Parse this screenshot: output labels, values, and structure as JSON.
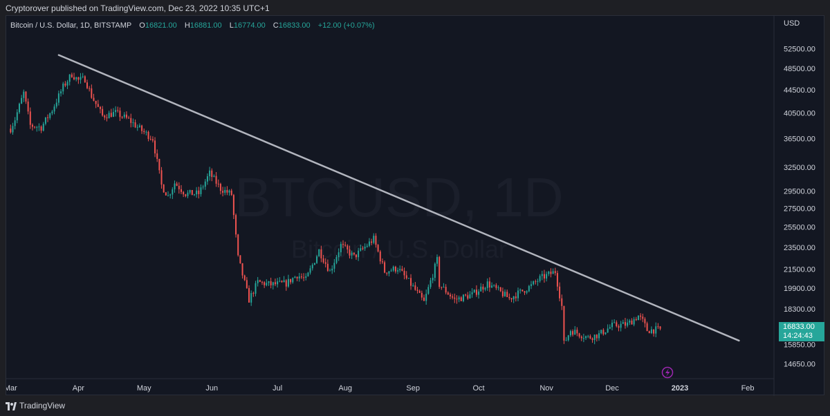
{
  "header": {
    "published_text": "Cryptorover published on TradingView.com, Dec 23, 2022 10:35 UTC+1"
  },
  "symbol": {
    "name": "Bitcoin / U.S. Dollar, 1D, BITSTAMP",
    "open_label": "O",
    "open_value": "16821.00",
    "high_label": "H",
    "high_value": "16881.00",
    "low_label": "L",
    "low_value": "16774.00",
    "close_label": "C",
    "close_value": "16833.00",
    "change": "+12.00 (+0.07%)"
  },
  "watermark": {
    "title": "BTCUSD, 1D",
    "subtitle": "Bitcoin / U.S. Dollar"
  },
  "price_axis": {
    "currency": "USD",
    "current_price": "16833.00",
    "countdown": "14:24:43"
  },
  "footer": {
    "brand": "TradingView"
  },
  "colors": {
    "up": "#26a69a",
    "down": "#ef5350",
    "trendline": "#b2b5be",
    "background": "#131722",
    "text": "#d1d4dc"
  },
  "icons": {
    "flash": "lightning-icon",
    "logo": "tradingview-logo-icon"
  },
  "chart_data": {
    "type": "candlestick",
    "x_tick_labels": [
      "Mar",
      "Apr",
      "May",
      "Jun",
      "Jul",
      "Aug",
      "Sep",
      "Oct",
      "Nov",
      "Dec",
      "2023",
      "Feb"
    ],
    "x_tick_dates": [
      "2022-03-01",
      "2022-04-01",
      "2022-05-01",
      "2022-06-01",
      "2022-07-01",
      "2022-08-01",
      "2022-09-01",
      "2022-10-01",
      "2022-11-01",
      "2022-12-01",
      "2023-01-01",
      "2023-02-01"
    ],
    "y_tick_values": [
      52500,
      48500,
      44500,
      40500,
      36500,
      32500,
      29500,
      27500,
      25500,
      23500,
      21500,
      19900,
      18300,
      15850,
      14650
    ],
    "y_tick_labels": [
      "52500.00",
      "48500.00",
      "44500.00",
      "40500.00",
      "36500.00",
      "32500.00",
      "29500.00",
      "27500.00",
      "25500.00",
      "23500.00",
      "21500.00",
      "19900.00",
      "18300.00",
      "15850.00",
      "14650.00"
    ],
    "y_scale": "log",
    "y_range": [
      13800,
      60000
    ],
    "x_range": [
      "2022-02-27",
      "2023-02-13"
    ],
    "grid": false,
    "trendline": [
      {
        "date": "2022-03-23",
        "price": 51200
      },
      {
        "date": "2023-01-28",
        "price": 16100
      }
    ],
    "close_path": [
      {
        "date": "2022-03-01",
        "close": 38000
      },
      {
        "date": "2022-03-03",
        "close": 39500
      },
      {
        "date": "2022-03-07",
        "close": 43900
      },
      {
        "date": "2022-03-10",
        "close": 38500
      },
      {
        "date": "2022-03-15",
        "close": 38200
      },
      {
        "date": "2022-03-20",
        "close": 41000
      },
      {
        "date": "2022-03-25",
        "close": 45000
      },
      {
        "date": "2022-03-29",
        "close": 47400
      },
      {
        "date": "2022-04-01",
        "close": 46200
      },
      {
        "date": "2022-04-04",
        "close": 46500
      },
      {
        "date": "2022-04-07",
        "close": 43400
      },
      {
        "date": "2022-04-12",
        "close": 40000
      },
      {
        "date": "2022-04-18",
        "close": 40500
      },
      {
        "date": "2022-04-24",
        "close": 39400
      },
      {
        "date": "2022-04-30",
        "close": 37700
      },
      {
        "date": "2022-05-05",
        "close": 36500
      },
      {
        "date": "2022-05-09",
        "close": 30200
      },
      {
        "date": "2022-05-12",
        "close": 28900
      },
      {
        "date": "2022-05-15",
        "close": 30500
      },
      {
        "date": "2022-05-20",
        "close": 29200
      },
      {
        "date": "2022-05-26",
        "close": 29200
      },
      {
        "date": "2022-05-31",
        "close": 31700
      },
      {
        "date": "2022-06-05",
        "close": 29800
      },
      {
        "date": "2022-06-10",
        "close": 29100
      },
      {
        "date": "2022-06-13",
        "close": 22500
      },
      {
        "date": "2022-06-18",
        "close": 19000
      },
      {
        "date": "2022-06-22",
        "close": 20400
      },
      {
        "date": "2022-06-28",
        "close": 20200
      },
      {
        "date": "2022-07-05",
        "close": 20300
      },
      {
        "date": "2022-07-10",
        "close": 21000
      },
      {
        "date": "2022-07-14",
        "close": 20600
      },
      {
        "date": "2022-07-20",
        "close": 23200
      },
      {
        "date": "2022-07-25",
        "close": 21300
      },
      {
        "date": "2022-07-30",
        "close": 23700
      },
      {
        "date": "2022-08-05",
        "close": 22600
      },
      {
        "date": "2022-08-14",
        "close": 24300
      },
      {
        "date": "2022-08-19",
        "close": 21300
      },
      {
        "date": "2022-08-25",
        "close": 21600
      },
      {
        "date": "2022-09-01",
        "close": 20000
      },
      {
        "date": "2022-09-06",
        "close": 18800
      },
      {
        "date": "2022-09-12",
        "close": 22300
      },
      {
        "date": "2022-09-13",
        "close": 20200
      },
      {
        "date": "2022-09-20",
        "close": 19000
      },
      {
        "date": "2022-09-28",
        "close": 19400
      },
      {
        "date": "2022-10-05",
        "close": 20300
      },
      {
        "date": "2022-10-15",
        "close": 19100
      },
      {
        "date": "2022-10-25",
        "close": 20100
      },
      {
        "date": "2022-10-29",
        "close": 20700
      },
      {
        "date": "2022-11-05",
        "close": 21300
      },
      {
        "date": "2022-11-08",
        "close": 18500
      },
      {
        "date": "2022-11-09",
        "close": 15900
      },
      {
        "date": "2022-11-12",
        "close": 16800
      },
      {
        "date": "2022-11-20",
        "close": 16300
      },
      {
        "date": "2022-11-25",
        "close": 16500
      },
      {
        "date": "2022-12-01",
        "close": 17100
      },
      {
        "date": "2022-12-08",
        "close": 17200
      },
      {
        "date": "2022-12-13",
        "close": 17800
      },
      {
        "date": "2022-12-15",
        "close": 17400
      },
      {
        "date": "2022-12-17",
        "close": 16800
      },
      {
        "date": "2022-12-23",
        "close": 16833
      }
    ]
  }
}
